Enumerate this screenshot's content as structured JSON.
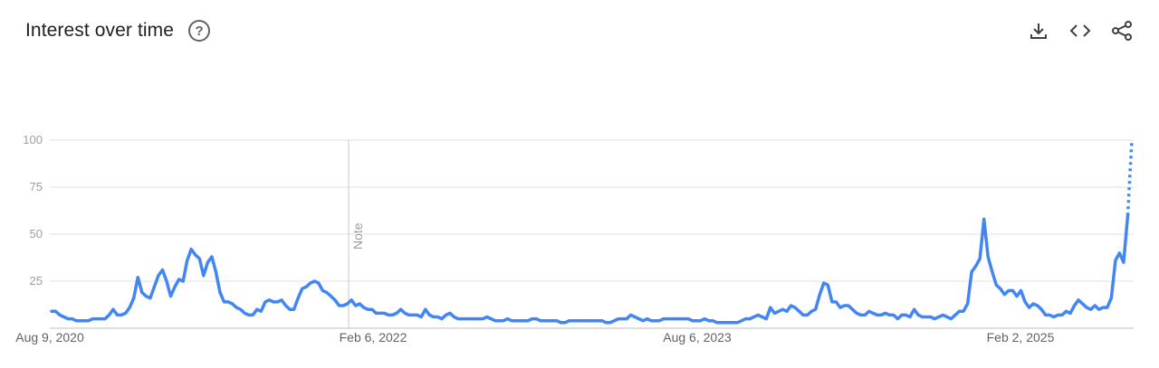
{
  "header": {
    "title": "Interest over time",
    "help_glyph": "?"
  },
  "toolbar": {
    "icons": [
      "download-icon",
      "embed-code-icon",
      "share-icon"
    ]
  },
  "colors": {
    "line": "#4285f4",
    "grid": "#e0e0e0",
    "axis": "#bdbdbd"
  },
  "chart_data": {
    "type": "line",
    "title": "Interest over time",
    "ylim": [
      0,
      100
    ],
    "y_ticks": [
      25,
      50,
      75,
      100
    ],
    "x_ticks": [
      "Aug 9, 2020",
      "Feb 6, 2022",
      "Aug 6, 2023",
      "Feb 2, 2025"
    ],
    "annotation": {
      "label": "Note",
      "at": "Feb 6, 2022"
    },
    "grid": true,
    "partial_last_point": true,
    "series": [
      {
        "values": [
          9,
          9,
          7,
          6,
          5,
          5,
          4,
          4,
          4,
          4,
          5,
          5,
          5,
          5,
          7,
          10,
          7,
          7,
          8,
          11,
          16,
          27,
          19,
          17,
          16,
          22,
          28,
          31,
          25,
          17,
          22,
          26,
          25,
          36,
          42,
          39,
          37,
          28,
          35,
          38,
          30,
          19,
          14,
          14,
          13,
          11,
          10,
          8,
          7,
          7,
          10,
          9,
          14,
          15,
          14,
          14,
          15,
          12,
          10,
          10,
          16,
          21,
          22,
          24,
          25,
          24,
          20,
          19,
          17,
          15,
          12,
          12,
          13,
          15,
          12,
          13,
          11,
          10,
          10,
          8,
          8,
          8,
          7,
          7,
          8,
          10,
          8,
          7,
          7,
          7,
          6,
          10,
          7,
          6,
          6,
          5,
          7,
          8,
          6,
          5,
          5,
          5,
          5,
          5,
          5,
          5,
          6,
          5,
          4,
          4,
          4,
          5,
          4,
          4,
          4,
          4,
          4,
          5,
          5,
          4,
          4,
          4,
          4,
          4,
          3,
          3,
          4,
          4,
          4,
          4,
          4,
          4,
          4,
          4,
          4,
          3,
          3,
          4,
          5,
          5,
          5,
          7,
          6,
          5,
          4,
          5,
          4,
          4,
          4,
          5,
          5,
          5,
          5,
          5,
          5,
          5,
          4,
          4,
          4,
          5,
          4,
          4,
          3,
          3,
          3,
          3,
          3,
          3,
          4,
          5,
          5,
          6,
          7,
          6,
          5,
          11,
          8,
          9,
          10,
          9,
          12,
          11,
          9,
          7,
          7,
          9,
          10,
          18,
          24,
          23,
          14,
          14,
          11,
          12,
          12,
          10,
          8,
          7,
          7,
          9,
          8,
          7,
          7,
          8,
          7,
          7,
          5,
          7,
          7,
          6,
          10,
          7,
          6,
          6,
          6,
          5,
          6,
          7,
          6,
          5,
          7,
          9,
          9,
          13,
          30,
          33,
          37,
          58,
          38,
          30,
          23,
          21,
          18,
          20,
          20,
          17,
          20,
          14,
          11,
          13,
          12,
          10,
          7,
          7,
          6,
          7,
          7,
          9,
          8,
          12,
          15,
          13,
          11,
          10,
          12,
          10,
          11,
          11,
          16,
          36,
          40,
          35,
          60,
          100
        ]
      }
    ]
  }
}
